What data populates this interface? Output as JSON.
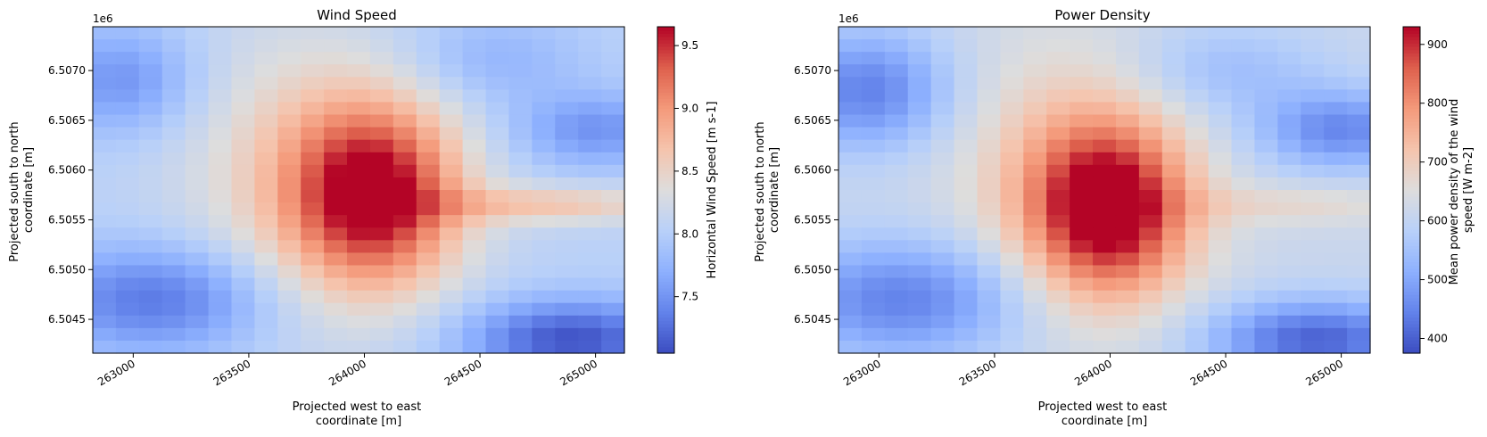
{
  "chart_data": [
    {
      "type": "heatmap",
      "title": "Wind Speed",
      "xlabel_lines": [
        "Projected west to east",
        "coordinate [m]"
      ],
      "ylabel_lines": [
        "Projected south to north",
        "coordinate [m]"
      ],
      "y_offset_label": "1e6",
      "x_ticks": [
        263000,
        263500,
        264000,
        264500,
        265000
      ],
      "y_ticks": [
        6.5045,
        6.505,
        6.5055,
        6.506,
        6.5065,
        6.507
      ],
      "x_tick_labels": [
        "263000",
        "263500",
        "264000",
        "264500",
        "265000"
      ],
      "y_tick_labels": [
        "6.5045",
        "6.5050",
        "6.5055",
        "6.5060",
        "6.5065",
        "6.5070"
      ],
      "xlim": [
        262825,
        265125
      ],
      "ylim": [
        6.50416,
        6.50744
      ],
      "grid_cols": 23,
      "grid_rows": 26,
      "colormap": "coolwarm",
      "vmin": 7.05,
      "vmax": 9.65,
      "colorbar_label": "Horizontal Wind Speed [m s-1]",
      "colorbar_ticks": [
        7.5,
        8.0,
        8.5,
        9.0,
        9.5
      ],
      "colorbar_tick_labels": [
        "7.5",
        "8.0",
        "8.5",
        "9.0",
        "9.5"
      ],
      "field": {
        "base": 8.05,
        "blobs": [
          {
            "cx": 264050,
            "cy": 6.50575,
            "sx": 260,
            "sy": 650,
            "amp": 1.6
          },
          {
            "cx": 263700,
            "cy": 6.506,
            "sx": 350,
            "sy": 1000,
            "amp": 0.45
          },
          {
            "cx": 264800,
            "cy": 6.50565,
            "sx": 380,
            "sy": 130,
            "amp": 0.6
          },
          {
            "cx": 263100,
            "cy": 6.5047,
            "sx": 360,
            "sy": 380,
            "amp": -0.75
          },
          {
            "cx": 264900,
            "cy": 6.5043,
            "sx": 330,
            "sy": 280,
            "amp": -0.95
          },
          {
            "cx": 265000,
            "cy": 6.5064,
            "sx": 240,
            "sy": 260,
            "amp": -0.55
          },
          {
            "cx": 262950,
            "cy": 6.5069,
            "sx": 230,
            "sy": 380,
            "amp": -0.55
          },
          {
            "cx": 264550,
            "cy": 6.5071,
            "sx": 280,
            "sy": 320,
            "amp": -0.3
          }
        ]
      }
    },
    {
      "type": "heatmap",
      "title": "Power Density",
      "xlabel_lines": [
        "Projected west to east",
        "coordinate [m]"
      ],
      "ylabel_lines": [
        "Projected south to north",
        "coordinate [m]"
      ],
      "y_offset_label": "1e6",
      "x_ticks": [
        263000,
        263500,
        264000,
        264500,
        265000
      ],
      "y_ticks": [
        6.5045,
        6.505,
        6.5055,
        6.506,
        6.5065,
        6.507
      ],
      "x_tick_labels": [
        "263000",
        "263500",
        "264000",
        "264500",
        "265000"
      ],
      "y_tick_labels": [
        "6.5045",
        "6.5050",
        "6.5055",
        "6.5060",
        "6.5065",
        "6.5070"
      ],
      "xlim": [
        262825,
        265125
      ],
      "ylim": [
        6.50416,
        6.50744
      ],
      "grid_cols": 23,
      "grid_rows": 26,
      "colormap": "coolwarm",
      "vmin": 375,
      "vmax": 930,
      "colorbar_label": "Mean power density of the wind speed [W m-2]",
      "colorbar_label_lines": [
        "Mean power density of the wind",
        "speed [W m-2]"
      ],
      "colorbar_ticks": [
        400,
        500,
        600,
        700,
        800,
        900
      ],
      "colorbar_tick_labels": [
        "400",
        "500",
        "600",
        "700",
        "800",
        "900"
      ],
      "field": {
        "base": 615,
        "blobs": [
          {
            "cx": 264000,
            "cy": 6.5056,
            "sx": 240,
            "sy": 600,
            "amp": 330
          },
          {
            "cx": 263800,
            "cy": 6.506,
            "sx": 320,
            "sy": 900,
            "amp": 90
          },
          {
            "cx": 264800,
            "cy": 6.50565,
            "sx": 380,
            "sy": 140,
            "amp": 60
          },
          {
            "cx": 263100,
            "cy": 6.5047,
            "sx": 380,
            "sy": 420,
            "amp": -170
          },
          {
            "cx": 264900,
            "cy": 6.5043,
            "sx": 330,
            "sy": 280,
            "amp": -210
          },
          {
            "cx": 265000,
            "cy": 6.5064,
            "sx": 250,
            "sy": 280,
            "amp": -160
          },
          {
            "cx": 262950,
            "cy": 6.5068,
            "sx": 250,
            "sy": 420,
            "amp": -170
          },
          {
            "cx": 264500,
            "cy": 6.507,
            "sx": 300,
            "sy": 320,
            "amp": -70
          }
        ]
      }
    }
  ]
}
